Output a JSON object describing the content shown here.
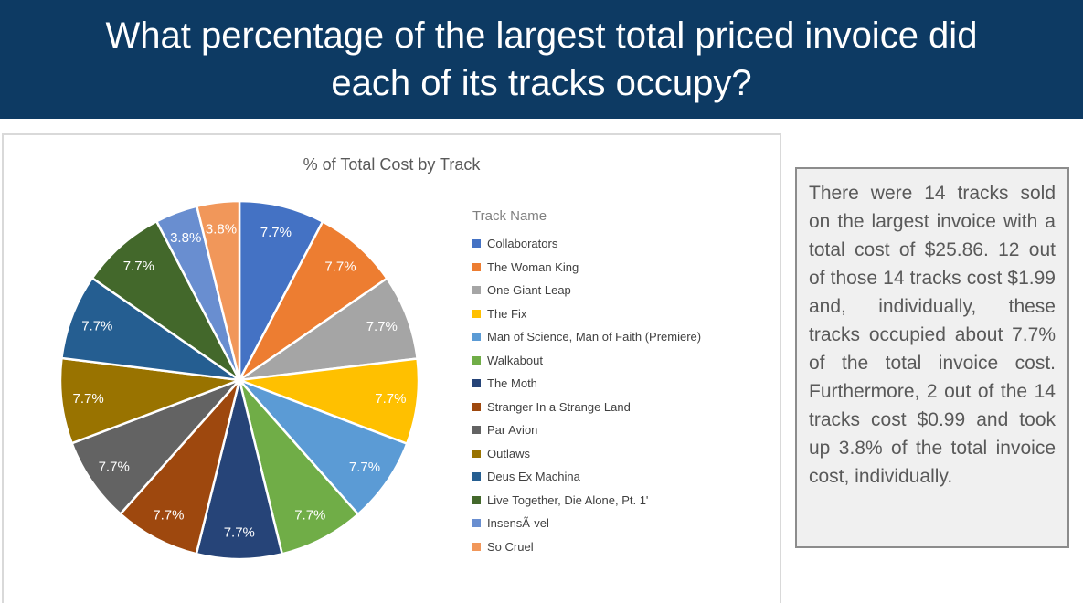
{
  "header": {
    "lines": [
      "What percentage of the largest total priced invoice did",
      "each of its tracks occupy?"
    ],
    "bg_color": "#0d3a63",
    "text_color": "#ffffff"
  },
  "chart_data": {
    "type": "pie",
    "title": "% of Total Cost by Track",
    "legend_title": "Track Name",
    "legend_position": "right",
    "start_angle_deg": 0,
    "clockwise": true,
    "total": 25.86,
    "slices": [
      {
        "label": "Collaborators",
        "value": 1.99,
        "pct_label": "7.7%",
        "color": "#4472C4"
      },
      {
        "label": "The Woman King",
        "value": 1.99,
        "pct_label": "7.7%",
        "color": "#ED7D31"
      },
      {
        "label": "One Giant Leap",
        "value": 1.99,
        "pct_label": "7.7%",
        "color": "#A5A5A5"
      },
      {
        "label": "The Fix",
        "value": 1.99,
        "pct_label": "7.7%",
        "color": "#FFC000"
      },
      {
        "label": "Man of Science, Man of Faith (Premiere)",
        "value": 1.99,
        "pct_label": "7.7%",
        "color": "#5B9BD5"
      },
      {
        "label": "Walkabout",
        "value": 1.99,
        "pct_label": "7.7%",
        "color": "#70AD47"
      },
      {
        "label": "The Moth",
        "value": 1.99,
        "pct_label": "7.7%",
        "color": "#264478"
      },
      {
        "label": "Stranger In a Strange Land",
        "value": 1.99,
        "pct_label": "7.7%",
        "color": "#9E480E"
      },
      {
        "label": "Par Avion",
        "value": 1.99,
        "pct_label": "7.7%",
        "color": "#636363"
      },
      {
        "label": "Outlaws",
        "value": 1.99,
        "pct_label": "7.7%",
        "color": "#997300"
      },
      {
        "label": "Deus Ex Machina",
        "value": 1.99,
        "pct_label": "7.7%",
        "color": "#255E91"
      },
      {
        "label": "Live Together, Die Alone, Pt. 1'",
        "value": 1.99,
        "pct_label": "7.7%",
        "color": "#43682B"
      },
      {
        "label": "InsensÃ-vel",
        "value": 0.99,
        "pct_label": "3.8%",
        "color": "#698ED0"
      },
      {
        "label": "So Cruel",
        "value": 0.99,
        "pct_label": "3.8%",
        "color": "#F1975A"
      }
    ]
  },
  "annotation": {
    "text": "There were 14 tracks sold on the largest invoice with a total cost of $25.86. 12 out of those 14 tracks cost $1.99 and, individually, these tracks occupied about 7.7% of the total invoice cost. Furthermore, 2 out of the 14 tracks cost $0.99 and took up 3.8% of the total invoice cost, individually."
  }
}
